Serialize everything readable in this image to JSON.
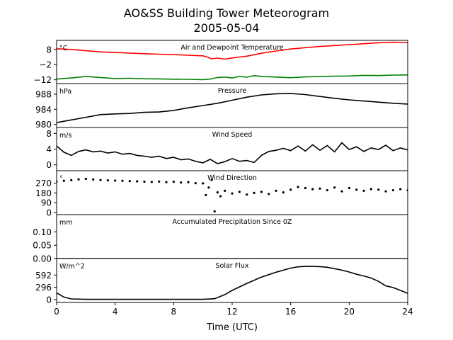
{
  "page": {
    "title_line1": "AO&SS Building Tower Meteorogram",
    "title_line2": "2005-05-04",
    "xlabel": "Time (UTC)",
    "xticks": [
      0,
      4,
      8,
      12,
      16,
      20,
      24
    ]
  },
  "chart_data": [
    {
      "type": "line",
      "title": "Air and Dewpoint Temperature",
      "ylabel": "°C",
      "ylim": [
        -14.5,
        14
      ],
      "yticks": [
        8,
        -2,
        -12
      ],
      "xlim": [
        0,
        24
      ],
      "series": [
        {
          "color": "#ff0000",
          "x": [
            0,
            1,
            2,
            3,
            4,
            5,
            6,
            7,
            8,
            9,
            9.5,
            10,
            10.3,
            10.6,
            11,
            11.5,
            12,
            12.5,
            13,
            13.5,
            14,
            15,
            16,
            17,
            18,
            19,
            20,
            21,
            22,
            23,
            24
          ],
          "values": [
            8.5,
            8,
            7.2,
            6.4,
            6,
            5.6,
            5.2,
            4.9,
            4.6,
            4.2,
            4,
            3.8,
            3,
            1.8,
            2.3,
            1.6,
            2.4,
            3,
            3.6,
            4.5,
            5.5,
            7,
            8.3,
            9.2,
            10,
            10.6,
            11.2,
            11.8,
            12.4,
            12.8,
            12.6
          ]
        },
        {
          "color": "#008000",
          "x": [
            0,
            1,
            2,
            3,
            4,
            5,
            6,
            7,
            8,
            9,
            10,
            10.5,
            11,
            11.5,
            12,
            12.5,
            13,
            13.5,
            14,
            15,
            16,
            17,
            18,
            19,
            20,
            21,
            22,
            23,
            24
          ],
          "values": [
            -11.5,
            -10.8,
            -9.8,
            -10.5,
            -11.2,
            -11,
            -11.3,
            -11.4,
            -11.6,
            -11.7,
            -11.9,
            -11.5,
            -10.5,
            -10.2,
            -10.8,
            -9.8,
            -10.3,
            -9.2,
            -9.8,
            -10.2,
            -10.6,
            -10.1,
            -9.8,
            -9.6,
            -9.5,
            -9.1,
            -9.2,
            -8.9,
            -8.8
          ]
        }
      ]
    },
    {
      "type": "line",
      "title": "Pressure",
      "ylabel": "hPa",
      "ylim": [
        979.2,
        990.8
      ],
      "yticks": [
        988,
        984,
        980
      ],
      "xlim": [
        0,
        24
      ],
      "series": [
        {
          "color": "#000000",
          "x": [
            0,
            1,
            2,
            3,
            4,
            5,
            6,
            7,
            8,
            9,
            10,
            11,
            12,
            13,
            14,
            15,
            16,
            17,
            18,
            19,
            20,
            21,
            22,
            23,
            24
          ],
          "values": [
            980.5,
            981.2,
            981.9,
            982.6,
            982.8,
            982.9,
            983.2,
            983.3,
            983.7,
            984.4,
            985.0,
            985.6,
            986.4,
            987.2,
            987.8,
            988.1,
            988.2,
            987.9,
            987.4,
            986.9,
            986.5,
            986.2,
            985.9,
            985.6,
            985.4
          ]
        }
      ]
    },
    {
      "type": "line",
      "title": "Wind Speed",
      "ylabel": "m/s",
      "ylim": [
        -1.5,
        9.5
      ],
      "yticks": [
        8,
        4,
        0
      ],
      "xlim": [
        0,
        24
      ],
      "series": [
        {
          "color": "#000000",
          "x": [
            0,
            0.5,
            1,
            1.5,
            2,
            2.5,
            3,
            3.5,
            4,
            4.5,
            5,
            5.5,
            6,
            6.5,
            7,
            7.5,
            8,
            8.5,
            9,
            9.5,
            10,
            10.5,
            11,
            11.5,
            12,
            12.5,
            13,
            13.5,
            14,
            14.5,
            15,
            15.5,
            16,
            16.5,
            17,
            17.5,
            18,
            18.5,
            19,
            19.5,
            20,
            20.5,
            21,
            21.5,
            22,
            22.5,
            23,
            23.5,
            24
          ],
          "values": [
            4.8,
            3.2,
            2.4,
            3.4,
            3.8,
            3.3,
            3.5,
            3.0,
            3.3,
            2.7,
            2.9,
            2.4,
            2.2,
            1.9,
            2.2,
            1.6,
            1.9,
            1.3,
            1.5,
            0.9,
            0.5,
            1.4,
            0.3,
            0.8,
            1.6,
            0.9,
            1.1,
            0.6,
            2.4,
            3.4,
            3.7,
            4.2,
            3.6,
            4.8,
            3.5,
            5.1,
            3.7,
            4.9,
            3.3,
            5.6,
            3.9,
            4.6,
            3.4,
            4.3,
            3.9,
            5.0,
            3.6,
            4.3,
            3.8
          ]
        }
      ]
    },
    {
      "type": "scatter",
      "title": "Wind Direction",
      "ylabel": "°",
      "ylim": [
        -20,
        385
      ],
      "yticks": [
        270,
        180,
        90,
        0
      ],
      "xlim": [
        0,
        24
      ],
      "series": [
        {
          "color": "#000000",
          "x": [
            0,
            0.5,
            1,
            1.5,
            2,
            2.5,
            3,
            3.5,
            4,
            4.5,
            5,
            5.5,
            6,
            6.5,
            7,
            7.5,
            8,
            8.5,
            9,
            9.5,
            10,
            10.2,
            10.4,
            10.6,
            10.8,
            11,
            11.2,
            11.5,
            12,
            12.5,
            13,
            13.5,
            14,
            14.5,
            15,
            15.5,
            16,
            16.5,
            17,
            17.5,
            18,
            18.5,
            19,
            19.5,
            20,
            20.5,
            21,
            21.5,
            22,
            22.5,
            23,
            23.5,
            24
          ],
          "values": [
            285,
            292,
            298,
            305,
            310,
            304,
            299,
            296,
            294,
            292,
            289,
            287,
            284,
            281,
            285,
            280,
            283,
            276,
            279,
            270,
            268,
            160,
            230,
            300,
            10,
            185,
            150,
            200,
            175,
            190,
            165,
            180,
            190,
            170,
            200,
            185,
            210,
            235,
            225,
            215,
            220,
            205,
            230,
            195,
            225,
            210,
            200,
            215,
            210,
            195,
            205,
            215,
            205
          ]
        }
      ]
    },
    {
      "type": "line",
      "title": "Accumulated Precipitation Since 0Z",
      "ylabel": "mm",
      "ylim": [
        0,
        0.165
      ],
      "yticks": [
        0.1,
        0.05,
        0.0
      ],
      "ytick_labels": [
        "0.10",
        "0.05",
        "0.00"
      ],
      "xlim": [
        0,
        24
      ],
      "series": [
        {
          "color": "#000000",
          "x": [
            0,
            24
          ],
          "values": [
            0,
            0
          ]
        }
      ]
    },
    {
      "type": "line",
      "title": "Solar Flux",
      "ylabel": "W/m^2",
      "ylim": [
        -70,
        990
      ],
      "yticks": [
        592,
        296,
        0
      ],
      "xlim": [
        0,
        24
      ],
      "series": [
        {
          "color": "#000000",
          "x": [
            0,
            0.5,
            1,
            2,
            4,
            6,
            8,
            10,
            10.8,
            11.5,
            12,
            13,
            14,
            15,
            16,
            16.5,
            17,
            17.5,
            18,
            18.5,
            19,
            19.5,
            20,
            20.5,
            21,
            21.5,
            22,
            22.5,
            23,
            23.5,
            24
          ],
          "values": [
            160,
            60,
            15,
            5,
            5,
            5,
            5,
            5,
            20,
            120,
            220,
            390,
            540,
            660,
            760,
            790,
            800,
            800,
            795,
            780,
            745,
            710,
            665,
            610,
            570,
            520,
            440,
            330,
            290,
            220,
            150
          ]
        }
      ]
    }
  ]
}
